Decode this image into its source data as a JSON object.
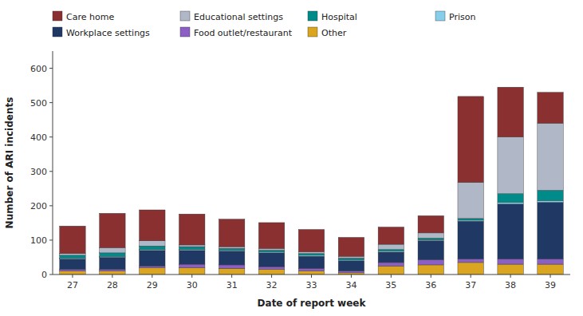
{
  "chart_data": {
    "type": "bar",
    "stacked": true,
    "grid": false,
    "legend": "upper left",
    "xlabel": "Date of report week",
    "ylabel": "Number of ARI incidents",
    "categories": [
      "27",
      "28",
      "29",
      "30",
      "31",
      "32",
      "33",
      "34",
      "35",
      "36",
      "37",
      "38",
      "39"
    ],
    "series": [
      {
        "name": "Other",
        "color": "#DAA520",
        "values": [
          10,
          10,
          20,
          20,
          18,
          15,
          10,
          5,
          25,
          28,
          35,
          30,
          30
        ]
      },
      {
        "name": "Food outlet/restaurant",
        "color": "#8B5FC4",
        "values": [
          5,
          5,
          5,
          10,
          10,
          8,
          8,
          5,
          10,
          15,
          10,
          15,
          15
        ]
      },
      {
        "name": "Workplace settings",
        "color": "#1F3864",
        "values": [
          30,
          35,
          45,
          40,
          40,
          40,
          35,
          30,
          30,
          55,
          110,
          160,
          165
        ]
      },
      {
        "name": "Prison",
        "color": "#87CEEB",
        "values": [
          3,
          3,
          3,
          3,
          3,
          3,
          3,
          3,
          3,
          3,
          3,
          5,
          5
        ]
      },
      {
        "name": "Hospital",
        "color": "#008B8B",
        "values": [
          8,
          10,
          10,
          8,
          5,
          5,
          5,
          5,
          5,
          5,
          5,
          25,
          30
        ]
      },
      {
        "name": "Educational settings",
        "color": "#B0B8C8",
        "values": [
          5,
          15,
          15,
          5,
          5,
          5,
          5,
          5,
          15,
          15,
          105,
          165,
          195
        ]
      },
      {
        "name": "Care home",
        "color": "#8B3030",
        "values": [
          80,
          100,
          90,
          90,
          80,
          75,
          65,
          55,
          50,
          50,
          250,
          145,
          90
        ]
      }
    ],
    "ylim": [
      0,
      650
    ],
    "yticks": [
      0,
      100,
      200,
      300,
      400,
      500,
      600
    ]
  }
}
